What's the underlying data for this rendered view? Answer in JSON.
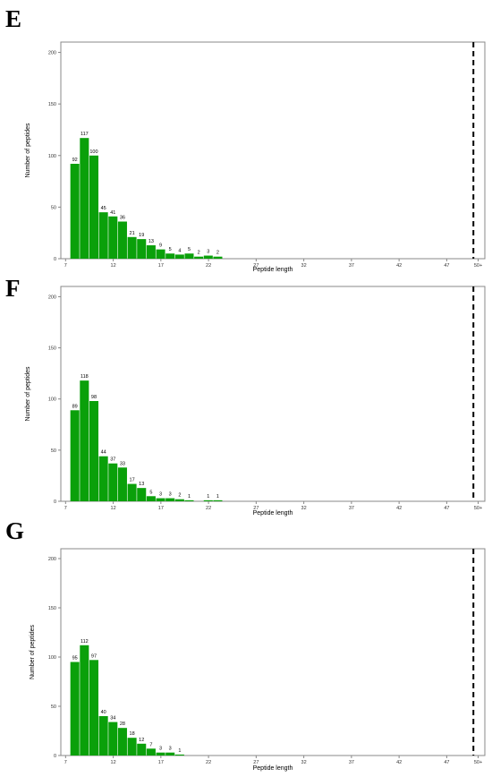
{
  "panels": [
    {
      "letter": "E"
    },
    {
      "letter": "F"
    },
    {
      "letter": "G"
    }
  ],
  "style": {
    "bar_color": "#0aa00a",
    "frame_color": "#888888",
    "dash_color": "#000000"
  },
  "chart_data": [
    {
      "type": "bar",
      "panel": "E",
      "xlabel": "Peptide length",
      "ylabel": "Number of peptides",
      "x_ticks": [
        "7",
        "12",
        "17",
        "22",
        "27",
        "32",
        "37",
        "42",
        "47",
        "50+"
      ],
      "y_ticks": [
        0,
        50,
        100,
        150,
        200
      ],
      "ylim": [
        0,
        210
      ],
      "xlim": [
        6.5,
        51
      ],
      "categories": [
        8,
        9,
        10,
        11,
        12,
        13,
        14,
        15,
        16,
        17,
        18,
        19,
        20,
        21,
        22,
        23
      ],
      "values": [
        92,
        117,
        100,
        45,
        41,
        36,
        21,
        19,
        13,
        9,
        5,
        4,
        5,
        2,
        3,
        2
      ],
      "data_labels": [
        "92",
        "117",
        "100",
        "45",
        "41",
        "36",
        "21",
        "19",
        "13",
        "9",
        "5",
        "4",
        "5",
        "2",
        "3",
        "2"
      ],
      "reference_line_x": 49.8,
      "grid": false
    },
    {
      "type": "bar",
      "panel": "F",
      "xlabel": "Peptide length",
      "ylabel": "Number of peptides",
      "x_ticks": [
        "7",
        "12",
        "17",
        "22",
        "27",
        "32",
        "37",
        "42",
        "47",
        "50+"
      ],
      "y_ticks": [
        0,
        50,
        100,
        150,
        200
      ],
      "ylim": [
        0,
        210
      ],
      "xlim": [
        6.5,
        51
      ],
      "categories": [
        8,
        9,
        10,
        11,
        12,
        13,
        14,
        15,
        16,
        17,
        18,
        19,
        20,
        21,
        22,
        23
      ],
      "values": [
        89,
        118,
        98,
        44,
        37,
        33,
        17,
        13,
        5,
        3,
        3,
        2,
        1,
        0,
        1,
        1
      ],
      "data_labels": [
        "89",
        "118",
        "98",
        "44",
        "37",
        "33",
        "17",
        "13",
        "5",
        "3",
        "3",
        "2",
        "1",
        "",
        "1",
        "1"
      ],
      "reference_line_x": 49.8,
      "grid": false
    },
    {
      "type": "bar",
      "panel": "G",
      "xlabel": "Peptide length",
      "ylabel": "Number of peptides",
      "x_ticks": [
        "7",
        "12",
        "17",
        "22",
        "27",
        "32",
        "37",
        "42",
        "47",
        "50+"
      ],
      "y_ticks": [
        0,
        50,
        100,
        150,
        200
      ],
      "ylim": [
        0,
        210
      ],
      "xlim": [
        6.5,
        51
      ],
      "categories": [
        8,
        9,
        10,
        11,
        12,
        13,
        14,
        15,
        16,
        17,
        18,
        19
      ],
      "values": [
        95,
        112,
        97,
        40,
        34,
        28,
        18,
        12,
        7,
        3,
        3,
        1
      ],
      "data_labels": [
        "95",
        "112",
        "97",
        "40",
        "34",
        "28",
        "18",
        "12",
        "7",
        "3",
        "3",
        "1"
      ],
      "reference_line_x": 49.8,
      "grid": false
    }
  ]
}
